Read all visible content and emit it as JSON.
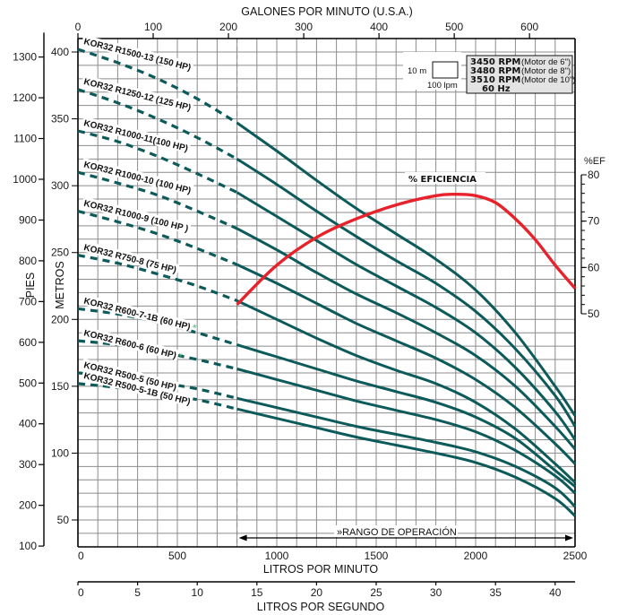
{
  "chart_data": {
    "type": "line",
    "title": "",
    "top_axis": {
      "label": "GALONES POR MINUTO (U.S.A.)",
      "ticks": [
        "0",
        "100",
        "200",
        "300",
        "400",
        "500",
        "600"
      ],
      "range": [
        0,
        660.4
      ]
    },
    "bottom_axis": {
      "label": "LITROS POR MINUTO",
      "ticks": [
        "0",
        "500",
        "1000",
        "1500",
        "2000",
        "2500"
      ],
      "range": [
        0,
        2500
      ]
    },
    "bottom_axis_2": {
      "label": "LITROS POR SEGUNDO",
      "ticks": [
        "0",
        "5",
        "10",
        "15",
        "20",
        "25",
        "30",
        "35",
        "40"
      ],
      "range": [
        0,
        41.67
      ]
    },
    "left_axis_feet": {
      "label": "PIES",
      "ticks": [
        "100",
        "200",
        "300",
        "400",
        "500",
        "600",
        "700",
        "800",
        "900",
        "1000",
        "1100",
        "1200",
        "1300"
      ]
    },
    "left_axis_meters": {
      "label": "METROS",
      "ticks": [
        "50",
        "100",
        "150",
        "200",
        "250",
        "300",
        "350",
        "400"
      ],
      "range": [
        30,
        410
      ]
    },
    "right_axis_efficiency": {
      "label": "%EF",
      "ticks": [
        "50",
        "60",
        "70",
        "80"
      ],
      "range": [
        50,
        80
      ]
    },
    "grid": true,
    "operating_range": {
      "label": "»RANGO DE OPERACIÓN",
      "from_lpm": 800,
      "to_lpm": 2500
    },
    "scale_box": {
      "vertical_label": "10 m",
      "horizontal_label": "100 lpm"
    },
    "legend": {
      "lines": [
        {
          "bold": "3450 RPM",
          "normal": "(Motor de 6\")"
        },
        {
          "bold": "3480 RPM",
          "normal": "(Motor de 8\")"
        },
        {
          "bold": "3510 RPM",
          "normal": "(Motor de 10\")"
        },
        {
          "bold": "60 Hz",
          "normal": ""
        }
      ]
    },
    "efficiency_curve": {
      "name": "% EFICIENCIA",
      "color": "#e8222a",
      "x_lpm": [
        800,
        1000,
        1200,
        1400,
        1600,
        1800,
        1900,
        2000,
        2100,
        2200,
        2300,
        2400,
        2500
      ],
      "values": [
        52.0,
        60.5,
        66.5,
        70.5,
        73.5,
        75.5,
        75.8,
        75.5,
        74.0,
        70.5,
        66.0,
        60.5,
        55.5
      ]
    },
    "x_lpm": [
      0,
      200,
      400,
      600,
      800,
      1000,
      1200,
      1400,
      1600,
      1800,
      2000,
      2200,
      2400,
      2500
    ],
    "series": [
      {
        "name": "KOR32 R1500-13 (150 HP)",
        "star": false,
        "values": [
          402,
          392,
          380,
          365,
          347,
          326,
          304,
          283,
          264,
          245,
          222,
          190,
          150,
          128
        ]
      },
      {
        "name": "KOR32 R1250-12 (125 HP)",
        "star": false,
        "values": [
          372,
          362,
          350,
          336,
          320,
          301,
          281,
          262,
          244,
          227,
          206,
          178,
          143,
          120
        ]
      },
      {
        "name": "KOR32 R1000-11(100 HP)",
        "star": false,
        "values": [
          341,
          333,
          322,
          309,
          295,
          277,
          259,
          241,
          225,
          209,
          190,
          164,
          131,
          110
        ]
      },
      {
        "name": "KOR32 R1000-10 (100 HP)",
        "star": false,
        "values": [
          310,
          302,
          293,
          281,
          268,
          252,
          235,
          219,
          205,
          190,
          173,
          150,
          120,
          103
        ]
      },
      {
        "name": "KOR32 R1000-9 (100 HP )",
        "star": false,
        "values": [
          281,
          273,
          264,
          253,
          241,
          227,
          212,
          197,
          184,
          171,
          155,
          134,
          107,
          92
        ]
      },
      {
        "name": "KOR32 R750-8 (75 HP)",
        "star": false,
        "values": [
          248,
          242,
          234,
          225,
          214,
          200,
          186,
          173,
          162,
          152,
          138,
          118,
          92,
          78
        ]
      },
      {
        "name": "KOR32 R600-7-1B (60 HP)",
        "star": true,
        "values": [
          208,
          204,
          198,
          190,
          181,
          172,
          163,
          154,
          146,
          138,
          127,
          111,
          87,
          75
        ]
      },
      {
        "name": "KOR32 R600-6 (60 HP)",
        "star": true,
        "values": [
          184,
          181,
          176,
          170,
          163,
          155,
          147,
          139,
          132,
          125,
          116,
          102,
          83,
          70
        ]
      },
      {
        "name": "KOR32 R500-5 (50 HP)",
        "star": false,
        "values": [
          160,
          157,
          153,
          148,
          141,
          134,
          127,
          120,
          114,
          108,
          101,
          90,
          74,
          60
        ]
      },
      {
        "name": "KOR32 R500-5-1B (50 HP)",
        "star": false,
        "values": [
          152,
          149,
          145,
          140,
          133,
          126,
          119,
          112,
          106,
          100,
          93,
          82,
          66,
          53
        ]
      }
    ],
    "curve_color": "#0d5a5a",
    "grid_color": "#8c8c8c",
    "star_color": "#3cb371"
  }
}
